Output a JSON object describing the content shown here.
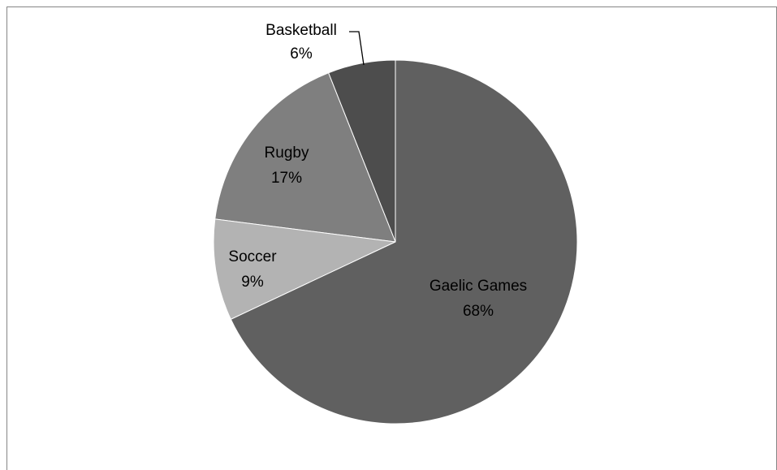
{
  "chart_data": {
    "type": "pie",
    "title": "",
    "categories": [
      "Basketball",
      "Rugby",
      "Soccer",
      "Gaelic Games"
    ],
    "values": [
      6,
      17,
      9,
      68
    ],
    "labels": [
      "6%",
      "17%",
      "9%",
      "68%"
    ],
    "colors": [
      "#4d4d4d",
      "#7f7f7f",
      "#b3b3b3",
      "#606060"
    ],
    "start_angle_deg": 0,
    "direction": "counterclockwise",
    "legend": "none",
    "data_labels": "category-and-percent"
  }
}
